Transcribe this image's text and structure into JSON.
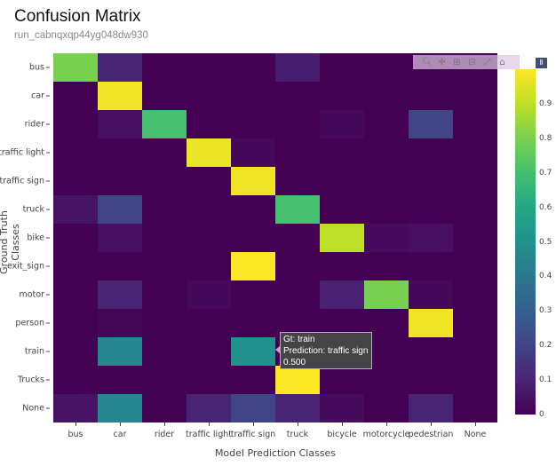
{
  "header": {
    "title": "Confusion Matrix",
    "subtitle": "run_cabnqxqp44yg048dw930"
  },
  "tooltip": {
    "line1": "Gt: train",
    "line2": "Prediction: traffic sign",
    "line3": "0.500"
  },
  "modebar": {
    "icons": [
      "zoom-icon",
      "pan-icon",
      "zoom-in-icon",
      "zoom-out-icon",
      "autoscale-icon",
      "home-icon",
      "plotly-logo-icon"
    ]
  },
  "colorscale": {
    "name": "Viridis",
    "min_color": "#440154",
    "max_color": "#fde725"
  },
  "chart_data": {
    "type": "heatmap",
    "title": "Confusion Matrix",
    "subtitle": "run_cabnqxqp44yg048dw930",
    "xlabel": "Model Prediction Classes",
    "ylabel": "Ground Truth Classes",
    "x": [
      "bus",
      "car",
      "rider",
      "traffic light",
      "traffic sign",
      "truck",
      "bicycle",
      "motorcycle",
      "pedestrian",
      "None"
    ],
    "y": [
      "bus",
      "car",
      "rider",
      "traffic light",
      "traffic sign",
      "truck",
      "bike",
      "exit_sign",
      "motor",
      "person",
      "train",
      "Trucks",
      "None"
    ],
    "z": [
      [
        0.8,
        0.1,
        0.0,
        0.0,
        0.0,
        0.08,
        0.0,
        0.0,
        0.0,
        0.0
      ],
      [
        0.0,
        0.98,
        0.0,
        0.0,
        0.0,
        0.0,
        0.0,
        0.0,
        0.0,
        0.0
      ],
      [
        0.0,
        0.04,
        0.7,
        0.0,
        0.0,
        0.0,
        0.02,
        0.0,
        0.2,
        0.0
      ],
      [
        0.0,
        0.0,
        0.0,
        0.97,
        0.02,
        0.0,
        0.0,
        0.0,
        0.0,
        0.0
      ],
      [
        0.0,
        0.0,
        0.0,
        0.0,
        0.98,
        0.0,
        0.0,
        0.0,
        0.0,
        0.0
      ],
      [
        0.05,
        0.2,
        0.0,
        0.0,
        0.0,
        0.7,
        0.0,
        0.0,
        0.0,
        0.0
      ],
      [
        0.0,
        0.04,
        0.0,
        0.0,
        0.0,
        0.0,
        0.9,
        0.03,
        0.04,
        0.0
      ],
      [
        0.0,
        0.0,
        0.0,
        0.0,
        1.0,
        0.0,
        0.0,
        0.0,
        0.0,
        0.0
      ],
      [
        0.0,
        0.1,
        0.0,
        0.02,
        0.0,
        0.0,
        0.09,
        0.8,
        0.02,
        0.0
      ],
      [
        0.0,
        0.01,
        0.0,
        0.0,
        0.0,
        0.0,
        0.0,
        0.0,
        0.98,
        0.0
      ],
      [
        0.0,
        0.45,
        0.0,
        0.0,
        0.5,
        0.0,
        0.0,
        0.0,
        0.0,
        0.0
      ],
      [
        0.0,
        0.0,
        0.0,
        0.0,
        0.0,
        1.0,
        0.0,
        0.0,
        0.0,
        0.0
      ],
      [
        0.05,
        0.45,
        0.0,
        0.1,
        0.2,
        0.1,
        0.03,
        0.0,
        0.1,
        0.0
      ]
    ],
    "zmin": 0,
    "zmax": 1,
    "colorbar_ticks": [
      "0",
      "0.1",
      "0.2",
      "0.3",
      "0.4",
      "0.5",
      "0.6",
      "0.7",
      "0.8",
      "0.9"
    ],
    "colorscale": "Viridis",
    "grid": false,
    "legend": "colorbar-right"
  }
}
